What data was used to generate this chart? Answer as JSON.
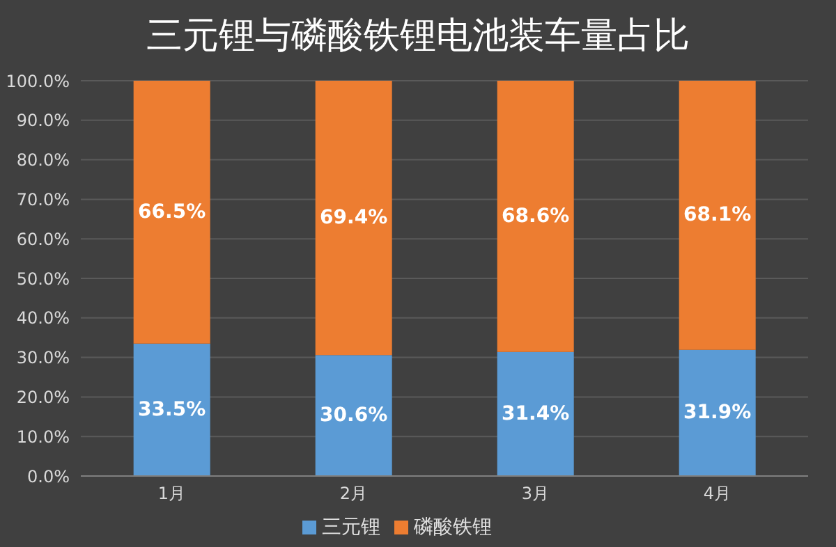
{
  "chart_data": {
    "type": "bar",
    "title": "三元锂与磷酸铁锂电池装车量占比",
    "categories": [
      "1月",
      "2月",
      "3月",
      "4月"
    ],
    "stacked": true,
    "series": [
      {
        "name": "三元锂",
        "color": "#5b9bd5",
        "values": [
          33.5,
          30.6,
          31.4,
          31.9
        ],
        "value_labels": [
          "33.5%",
          "30.6%",
          "31.4%",
          "31.9%"
        ]
      },
      {
        "name": "磷酸铁锂",
        "color": "#ed7d31",
        "values": [
          66.5,
          69.4,
          68.6,
          68.1
        ],
        "value_labels": [
          "66.5%",
          "69.4%",
          "68.6%",
          "68.1%"
        ]
      }
    ],
    "ylim": [
      0,
      100
    ],
    "yticks": [
      {
        "value": 0,
        "label": "0.0%"
      },
      {
        "value": 10,
        "label": "10.0%"
      },
      {
        "value": 20,
        "label": "20.0%"
      },
      {
        "value": 30,
        "label": "30.0%"
      },
      {
        "value": 40,
        "label": "40.0%"
      },
      {
        "value": 50,
        "label": "50.0%"
      },
      {
        "value": 60,
        "label": "60.0%"
      },
      {
        "value": 70,
        "label": "70.0%"
      },
      {
        "value": 80,
        "label": "80.0%"
      },
      {
        "value": 90,
        "label": "90.0%"
      },
      {
        "value": 100,
        "label": "100.0%"
      }
    ],
    "grid": "y",
    "legend": "bottom"
  }
}
